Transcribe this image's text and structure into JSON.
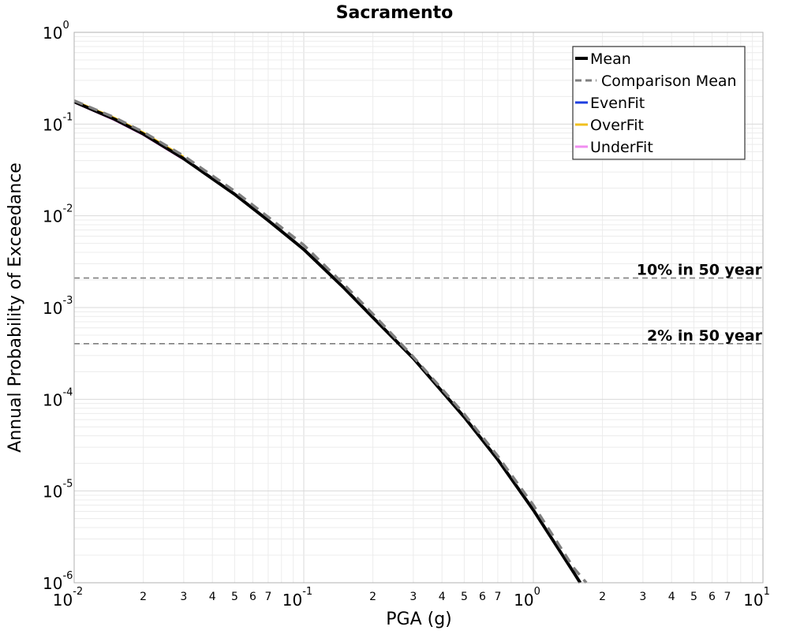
{
  "chart_data": {
    "type": "line",
    "title": "Sacramento",
    "xlabel": "PGA (g)",
    "ylabel": "Annual Probability of Exceedance",
    "xscale": "log",
    "yscale": "log",
    "xlim": [
      0.01,
      10
    ],
    "ylim": [
      1e-06,
      1
    ],
    "grid": true,
    "legend_position": "top-right",
    "x_ticks": {
      "major": [
        {
          "base": "10",
          "exp": "-2"
        },
        {
          "base": "10",
          "exp": "-1"
        },
        {
          "base": "10",
          "exp": "0"
        },
        {
          "base": "10",
          "exp": "1"
        }
      ],
      "minor_labels": [
        "2",
        "3",
        "4",
        "5",
        "6",
        "7"
      ]
    },
    "y_ticks": {
      "major": [
        {
          "base": "10",
          "exp": "0"
        },
        {
          "base": "10",
          "exp": "-1"
        },
        {
          "base": "10",
          "exp": "-2"
        },
        {
          "base": "10",
          "exp": "-3"
        },
        {
          "base": "10",
          "exp": "-4"
        },
        {
          "base": "10",
          "exp": "-5"
        },
        {
          "base": "10",
          "exp": "-6"
        }
      ]
    },
    "series": [
      {
        "name": "Mean",
        "color": "#000000",
        "style": "solid",
        "x": [
          0.01,
          0.015,
          0.02,
          0.03,
          0.05,
          0.07,
          0.1,
          0.15,
          0.2,
          0.3,
          0.5,
          0.7,
          1.0,
          1.5,
          1.6
        ],
        "y": [
          0.175,
          0.113,
          0.078,
          0.042,
          0.0172,
          0.0089,
          0.0043,
          0.00163,
          0.00078,
          0.00028,
          6.4e-05,
          2.2e-05,
          6.2e-06,
          1.29e-06,
          1e-06
        ]
      },
      {
        "name": "Comparison Mean",
        "color": "#808080",
        "style": "dashed",
        "x": [
          0.01,
          0.015,
          0.02,
          0.03,
          0.05,
          0.07,
          0.1,
          0.15,
          0.2,
          0.3,
          0.5,
          0.7,
          1.0,
          1.5,
          1.7
        ],
        "y": [
          0.18,
          0.118,
          0.082,
          0.045,
          0.0186,
          0.0097,
          0.0048,
          0.00178,
          0.00085,
          0.00029,
          6.9e-05,
          2.4e-05,
          7e-06,
          1.45e-06,
          1e-06
        ]
      },
      {
        "name": "EvenFit",
        "color": "#1f3fe0",
        "style": "solid",
        "x": [
          0.01,
          0.015,
          0.02,
          0.03
        ],
        "y": [
          0.177,
          0.115,
          0.079,
          0.043
        ]
      },
      {
        "name": "OverFit",
        "color": "#f0c020",
        "style": "solid",
        "x": [
          0.01,
          0.015,
          0.02,
          0.03
        ],
        "y": [
          0.18,
          0.117,
          0.081,
          0.044
        ]
      },
      {
        "name": "UnderFit",
        "color": "#f08ef0",
        "style": "solid",
        "x": [
          0.01,
          0.015,
          0.02,
          0.03
        ],
        "y": [
          0.172,
          0.11,
          0.076,
          0.041
        ]
      }
    ],
    "reference_lines": [
      {
        "label": "10% in 50 year",
        "y": 0.0021,
        "color": "#808080"
      },
      {
        "label": "2% in 50 year",
        "y": 0.000404,
        "color": "#808080"
      }
    ]
  }
}
